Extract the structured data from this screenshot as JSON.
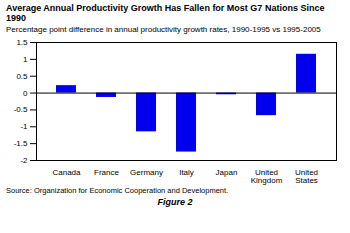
{
  "chart_data": {
    "type": "bar",
    "title": "Average Annual Productivity Growth Has Fallen for Most G7 Nations Since 1990",
    "subtitle": "Percentage point difference in annual productivity growth rates, 1990-1995 vs 1995-2005",
    "source": "Source: Organization for Economic Cooperation and Development.",
    "figure_label": "Figure 2",
    "categories": [
      "Canada",
      "France",
      "Germany",
      "Italy",
      "Japan",
      "United Kingdom",
      "United States"
    ],
    "values": [
      0.22,
      -0.13,
      -1.15,
      -1.75,
      -0.05,
      -0.67,
      1.15
    ],
    "color": "#0000EE",
    "ylim": [
      -2.0,
      1.5
    ],
    "yticks": [
      -2,
      -1.5,
      -1,
      -0.5,
      0,
      0.5,
      1,
      1.5
    ],
    "grid": false
  }
}
